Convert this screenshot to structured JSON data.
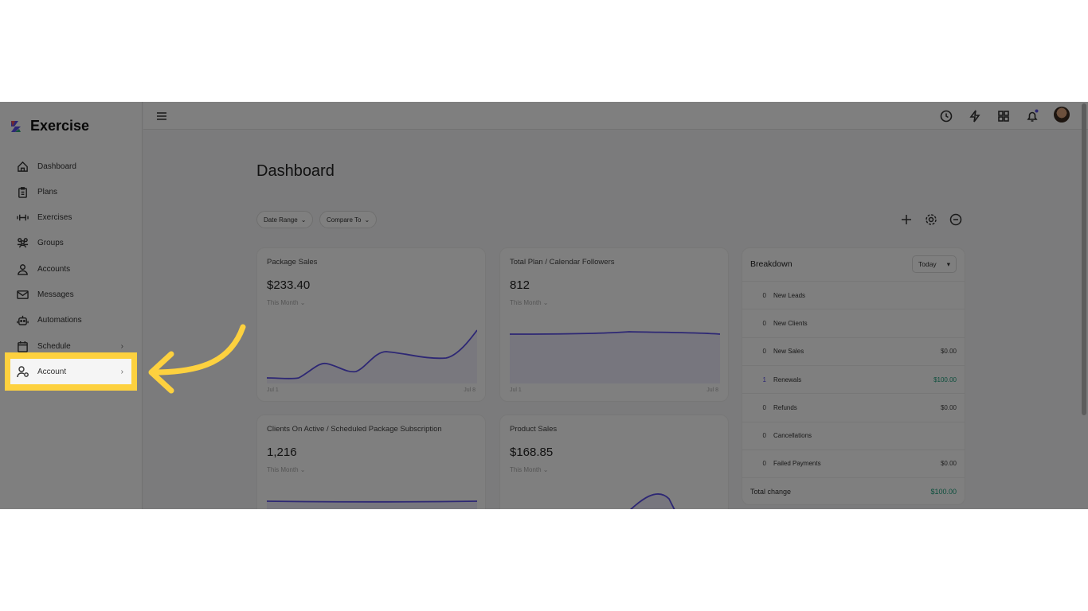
{
  "app": {
    "name": "Exercise"
  },
  "sidebar": {
    "items": [
      {
        "label": "Dashboard",
        "icon": "home-icon"
      },
      {
        "label": "Plans",
        "icon": "clipboard-icon"
      },
      {
        "label": "Exercises",
        "icon": "dumbbell-icon"
      },
      {
        "label": "Groups",
        "icon": "users-icon"
      },
      {
        "label": "Accounts",
        "icon": "user-icon"
      },
      {
        "label": "Messages",
        "icon": "mail-icon"
      },
      {
        "label": "Automations",
        "icon": "robot-icon"
      },
      {
        "label": "Schedule",
        "icon": "calendar-icon"
      },
      {
        "label": "Account",
        "icon": "user-gear-icon"
      }
    ]
  },
  "topbar": {
    "icons": [
      "history-icon",
      "bolt-icon",
      "grid-icon",
      "bell-icon",
      "avatar"
    ],
    "notification_color": "#5b4ee8"
  },
  "main": {
    "title": "Dashboard",
    "filters": [
      "Date Range",
      "Compare To"
    ],
    "actions": [
      "plus-icon",
      "gear-icon",
      "more-icon"
    ],
    "cards": [
      {
        "title": "Package Sales",
        "value": "$233.40",
        "period": "This Month",
        "x_start": "Jul 1",
        "x_end": "Jul 8"
      },
      {
        "title": "Total Plan / Calendar Followers",
        "value": "812",
        "period": "This Month",
        "x_start": "Jul 1",
        "x_end": "Jul 8"
      },
      {
        "title": "Clients On Active / Scheduled Package Subscription",
        "value": "1,216",
        "period": "This Month"
      },
      {
        "title": "Product Sales",
        "value": "$168.85",
        "period": "This Month"
      }
    ],
    "breakdown": {
      "title": "Breakdown",
      "range": "Today",
      "rows": [
        {
          "count": "0",
          "label": "New Leads",
          "amount": ""
        },
        {
          "count": "0",
          "label": "New Clients",
          "amount": ""
        },
        {
          "count": "0",
          "label": "New Sales",
          "amount": "$0.00"
        },
        {
          "count": "1",
          "label": "Renewals",
          "amount": "$100.00"
        },
        {
          "count": "0",
          "label": "Refunds",
          "amount": "$0.00"
        },
        {
          "count": "0",
          "label": "Cancellations",
          "amount": ""
        },
        {
          "count": "0",
          "label": "Failed Payments",
          "amount": "$0.00"
        }
      ],
      "total_label": "Total change",
      "total": "$100.00"
    }
  },
  "colors": {
    "accent": "#5b4ee8",
    "positive": "#1a9e7a",
    "highlight": "#fdd13f"
  }
}
